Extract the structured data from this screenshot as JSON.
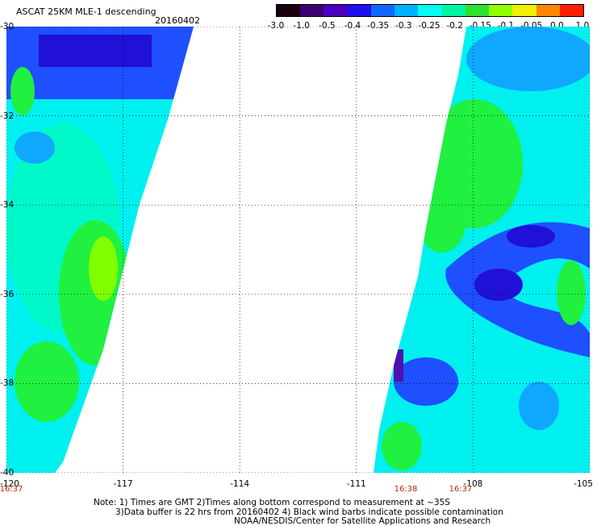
{
  "header": {
    "title": "ASCAT 25KM MLE-1 descending",
    "date": "20160402"
  },
  "colorbar": {
    "labels": [
      "-3.0",
      "-1.0",
      "-0.5",
      "-0.4",
      "-0.35",
      "-0.3",
      "-0.25",
      "-0.2",
      "-0.15",
      "-0.1",
      "-0.05",
      "0.0",
      "1.0"
    ],
    "colors": [
      "#1a0010",
      "#3d0070",
      "#4b00c0",
      "#1e10f0",
      "#1068ff",
      "#00b0ff",
      "#00ffee",
      "#00f5a0",
      "#30e030",
      "#90ff00",
      "#f0f000",
      "#ff8800",
      "#ff2000"
    ]
  },
  "map": {
    "y_labels": [
      "-30",
      "-32",
      "-34",
      "-36",
      "-38",
      "-40"
    ],
    "x_labels": [
      "-120",
      "-117",
      "-114",
      "-111",
      "-108",
      "-105"
    ],
    "times": [
      "16:37",
      "16:38",
      "16:37"
    ],
    "swath_colors": {
      "deep": "#2010d8",
      "blue": "#1e50ff",
      "sky": "#10a8ff",
      "cyan": "#00f0f0",
      "aqua": "#00f8c8",
      "green": "#20f040",
      "lime": "#80ff00",
      "purple": "#5010b0"
    }
  },
  "notes": [
    "Note: 1) Times are GMT 2)Times along bottom correspond to measurement at ~35S",
    "3)Data buffer is 22 hrs from 20160402 4) Black wind barbs indicate possible contamination",
    "NOAA/NESDIS/Center for Satellite Applications and Research"
  ]
}
